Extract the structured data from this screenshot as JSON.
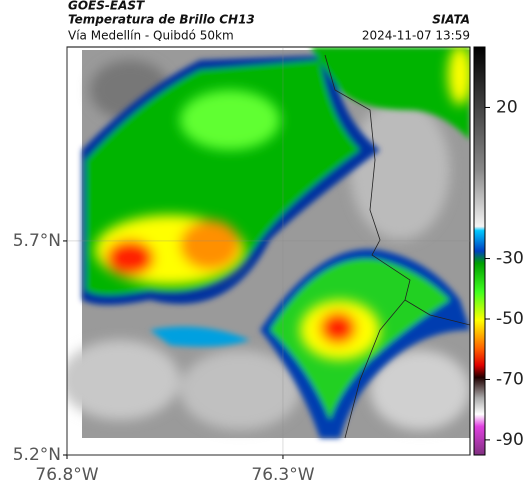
{
  "header": {
    "title": "GOES-EAST",
    "subtitle": "Temperatura de Brillo CH13",
    "source": "SIATA",
    "route": "Vía Medellín - Quibdó 50km",
    "datetime": "2024-11-07 13:59"
  },
  "map": {
    "xlim": [
      -76.8,
      -75.867
    ],
    "ylim": [
      5.2,
      6.153
    ],
    "xticks": [
      {
        "value": -76.8,
        "label": "76.8°W"
      },
      {
        "value": -76.3,
        "label": "76.3°W"
      }
    ],
    "yticks": [
      {
        "value": 5.7,
        "label": "5.7°N"
      },
      {
        "value": 5.2,
        "label": "5.2°N"
      }
    ]
  },
  "colorbar": {
    "lim": [
      -95,
      40
    ],
    "ticks": [
      20,
      -30,
      -50,
      -70,
      -90
    ]
  }
}
